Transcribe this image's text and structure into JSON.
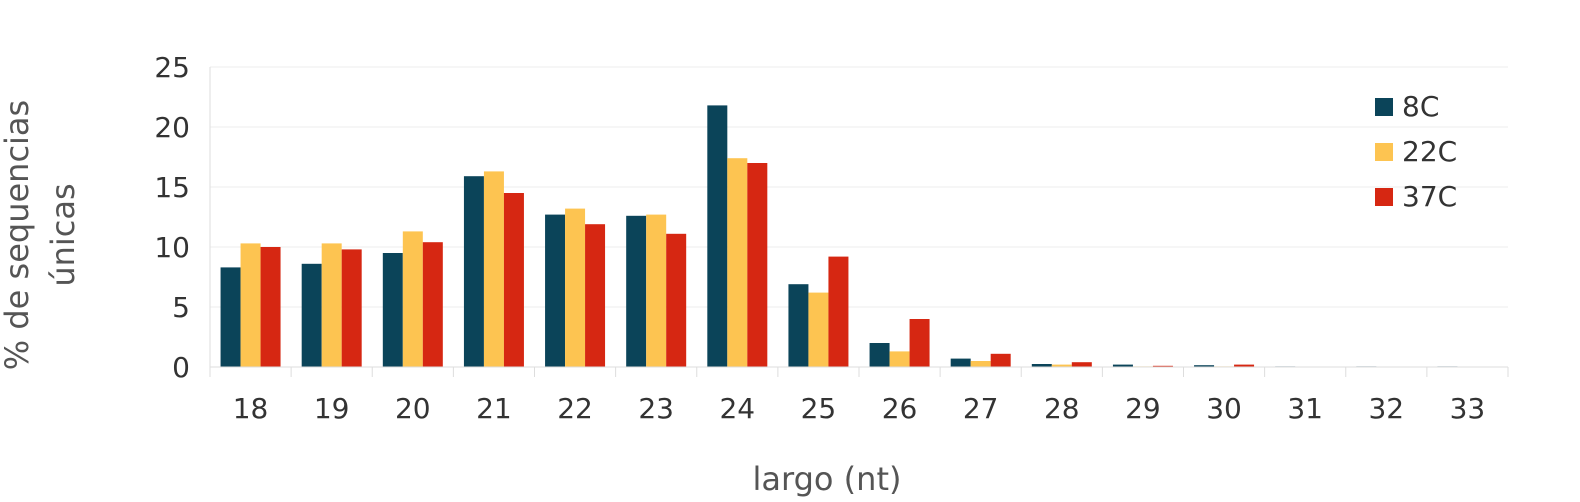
{
  "chart_data": {
    "type": "bar",
    "categories": [
      "18",
      "19",
      "20",
      "21",
      "22",
      "23",
      "24",
      "25",
      "26",
      "27",
      "28",
      "29",
      "30",
      "31",
      "32",
      "33"
    ],
    "series": [
      {
        "name": "8C",
        "color": "#0b4459",
        "values": [
          8.3,
          8.6,
          9.5,
          15.9,
          12.7,
          12.6,
          21.8,
          6.9,
          2.0,
          0.7,
          0.25,
          0.2,
          0.15,
          0.05,
          0.05,
          0.05
        ]
      },
      {
        "name": "22C",
        "color": "#fdc451",
        "values": [
          10.3,
          10.3,
          11.3,
          16.3,
          13.2,
          12.7,
          17.4,
          6.2,
          1.3,
          0.5,
          0.2,
          0.05,
          0.05,
          0.0,
          0.0,
          0.0
        ]
      },
      {
        "name": "37C",
        "color": "#d62712",
        "values": [
          10.0,
          9.8,
          10.4,
          14.5,
          11.9,
          11.1,
          17.0,
          9.2,
          4.0,
          1.1,
          0.4,
          0.1,
          0.2,
          0.0,
          0.0,
          0.0
        ]
      }
    ],
    "yticks": [
      "0",
      "5",
      "10",
      "15",
      "20",
      "25"
    ],
    "ylim": [
      0,
      25
    ],
    "xlabel": "largo (nt)",
    "ylabel_lines": [
      "% de sequencias",
      "únicas"
    ],
    "grid": true,
    "legend_position": "top-right"
  }
}
